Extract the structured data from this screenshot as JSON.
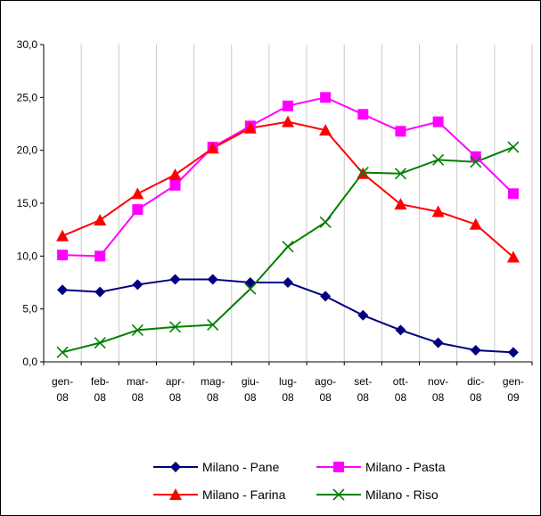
{
  "chart_data": {
    "type": "line",
    "categories": [
      [
        "gen-",
        "08"
      ],
      [
        "feb-",
        "08"
      ],
      [
        "mar-",
        "08"
      ],
      [
        "apr-",
        "08"
      ],
      [
        "mag-",
        "08"
      ],
      [
        "giu-",
        "08"
      ],
      [
        "lug-",
        "08"
      ],
      [
        "ago-",
        "08"
      ],
      [
        "set-",
        "08"
      ],
      [
        "ott-",
        "08"
      ],
      [
        "nov-",
        "08"
      ],
      [
        "dic-",
        "08"
      ],
      [
        "gen-",
        "09"
      ]
    ],
    "y_ticks": [
      "0,0",
      "5,0",
      "10,0",
      "15,0",
      "20,0",
      "25,0",
      "30,0"
    ],
    "ylim": [
      0,
      30
    ],
    "y_step": 5,
    "grid": "vertical",
    "legend_position": "bottom",
    "series": [
      {
        "name": "Milano - Pane",
        "color": "#000080",
        "marker": "diamond",
        "values": [
          6.8,
          6.6,
          7.3,
          7.8,
          7.8,
          7.5,
          7.5,
          6.2,
          4.4,
          3.0,
          1.8,
          1.1,
          0.9
        ]
      },
      {
        "name": "Milano - Pasta",
        "color": "#FF00FF",
        "marker": "square",
        "values": [
          10.1,
          10.0,
          14.4,
          16.7,
          20.3,
          22.3,
          24.2,
          25.0,
          23.4,
          21.8,
          22.7,
          19.4,
          15.9
        ]
      },
      {
        "name": "Milano - Farina",
        "color": "#FF0000",
        "marker": "triangle",
        "values": [
          11.9,
          13.4,
          15.9,
          17.7,
          20.2,
          22.1,
          22.7,
          21.9,
          17.8,
          14.9,
          14.2,
          13.0,
          9.9
        ]
      },
      {
        "name": "Milano - Riso",
        "color": "#008000",
        "marker": "x",
        "values": [
          0.9,
          1.8,
          3.0,
          3.3,
          3.5,
          6.9,
          10.9,
          13.2,
          17.9,
          17.8,
          19.1,
          18.9,
          20.3
        ]
      }
    ]
  }
}
